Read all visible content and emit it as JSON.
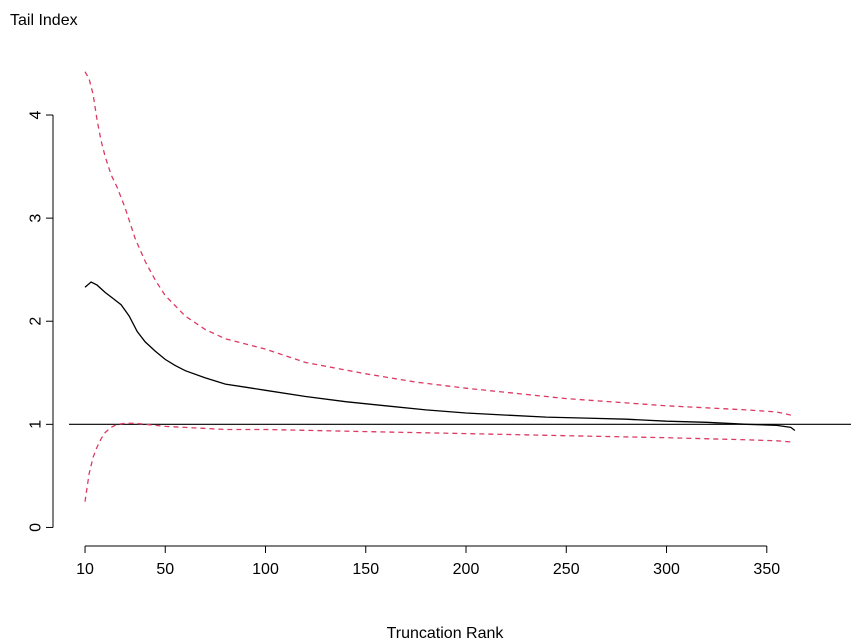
{
  "chart_data": {
    "type": "line",
    "title": "",
    "ylabel": "Tail Index",
    "xlabel": "Truncation Rank",
    "xlim": [
      2,
      392
    ],
    "ylim": [
      -0.18,
      4.65
    ],
    "x_ticks": [
      10,
      50,
      100,
      150,
      200,
      250,
      300,
      350
    ],
    "x_tick_labels": [
      "10",
      "50",
      "100",
      "150",
      "200",
      "250",
      "300",
      "350"
    ],
    "y_ticks": [
      0,
      1,
      2,
      3,
      4
    ],
    "y_tick_labels": [
      "0",
      "1",
      "2",
      "3",
      "4"
    ],
    "grid": false,
    "reference_line": {
      "y": 1,
      "color": "#000000"
    },
    "series": [
      {
        "role": "estimate",
        "color": "#000000",
        "style": "solid",
        "x": [
          10,
          13,
          16,
          20,
          24,
          28,
          32,
          36,
          40,
          45,
          50,
          55,
          60,
          70,
          80,
          90,
          100,
          120,
          140,
          160,
          180,
          200,
          220,
          240,
          260,
          280,
          300,
          320,
          340,
          355,
          362,
          364
        ],
        "y": [
          2.33,
          2.38,
          2.35,
          2.28,
          2.22,
          2.16,
          2.05,
          1.9,
          1.8,
          1.71,
          1.63,
          1.57,
          1.52,
          1.45,
          1.39,
          1.36,
          1.33,
          1.27,
          1.22,
          1.18,
          1.14,
          1.11,
          1.09,
          1.07,
          1.06,
          1.05,
          1.03,
          1.02,
          1.0,
          0.99,
          0.97,
          0.94
        ]
      },
      {
        "role": "upper-bound",
        "color": "#dc3a63",
        "style": "dashed",
        "x": [
          10,
          12,
          14,
          16,
          18,
          20,
          23,
          26,
          30,
          35,
          40,
          45,
          50,
          60,
          70,
          80,
          100,
          120,
          150,
          175,
          200,
          250,
          300,
          340,
          355,
          362
        ],
        "y": [
          4.42,
          4.35,
          4.2,
          3.95,
          3.75,
          3.6,
          3.42,
          3.3,
          3.1,
          2.8,
          2.58,
          2.4,
          2.25,
          2.05,
          1.92,
          1.83,
          1.73,
          1.6,
          1.49,
          1.41,
          1.35,
          1.25,
          1.18,
          1.14,
          1.12,
          1.09
        ]
      },
      {
        "role": "lower-bound",
        "color": "#dc3a63",
        "style": "dashed",
        "x": [
          10,
          12,
          14,
          16,
          18,
          20,
          23,
          26,
          30,
          35,
          40,
          50,
          60,
          80,
          100,
          150,
          200,
          250,
          300,
          340,
          355,
          362
        ],
        "y": [
          0.25,
          0.52,
          0.68,
          0.78,
          0.86,
          0.92,
          0.97,
          1.0,
          1.01,
          1.01,
          1.0,
          0.98,
          0.97,
          0.95,
          0.95,
          0.93,
          0.91,
          0.89,
          0.87,
          0.85,
          0.84,
          0.83
        ]
      }
    ]
  }
}
